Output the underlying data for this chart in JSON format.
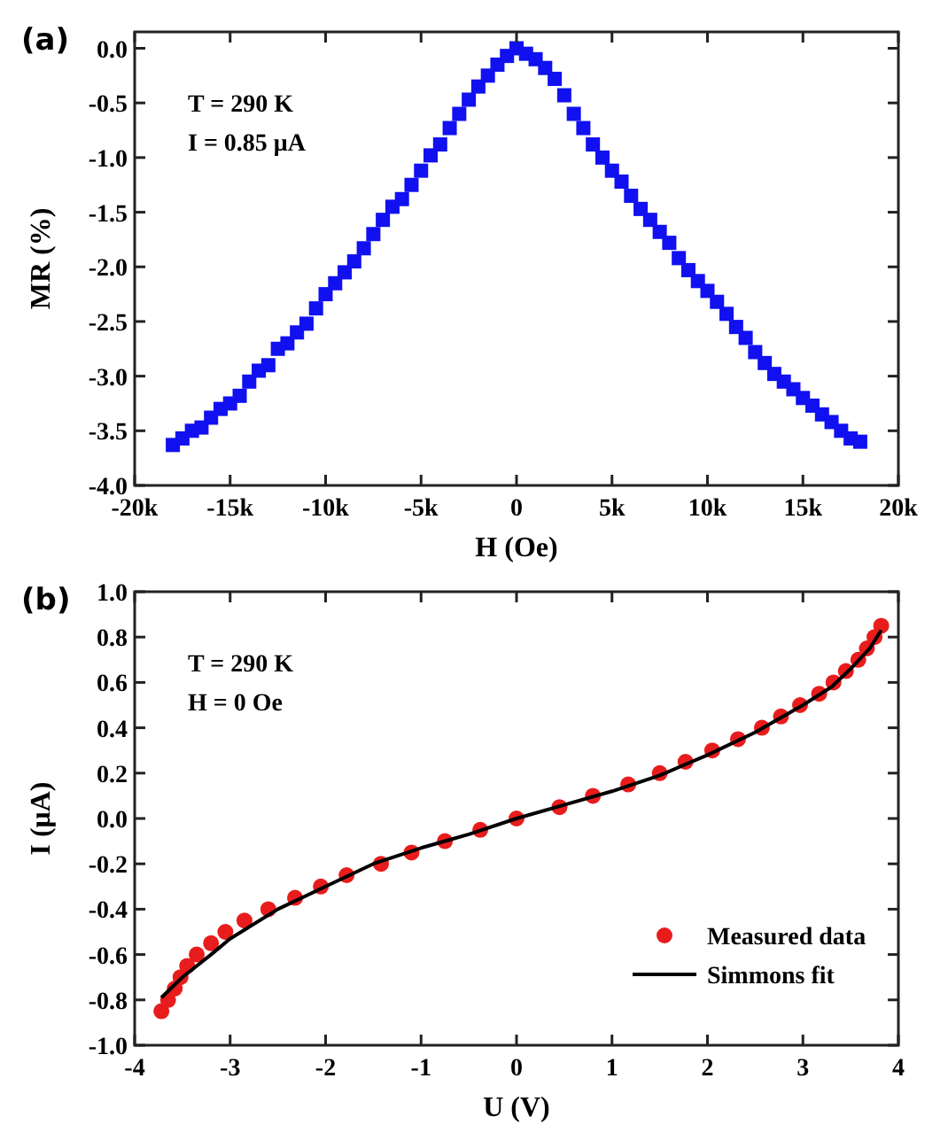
{
  "chart_data": [
    {
      "type": "scatter",
      "title": "(a)",
      "xlabel": "H (Oe)",
      "ylabel": "MR (%)",
      "annotations": [
        "T = 290 K",
        "I = 0.85 μA"
      ],
      "xlim": [
        -20000,
        20000
      ],
      "ylim": [
        -4,
        0.15
      ],
      "xticks": [
        {
          "value": -20000,
          "label": "-20k"
        },
        {
          "value": -15000,
          "label": "-15k"
        },
        {
          "value": -10000,
          "label": "-10k"
        },
        {
          "value": -5000,
          "label": "-5k"
        },
        0,
        {
          "value": 5000,
          "label": "5k"
        },
        {
          "value": 10000,
          "label": "10k"
        },
        {
          "value": 15000,
          "label": "15k"
        },
        {
          "value": 20000,
          "label": "20k"
        }
      ],
      "yticks": [
        {
          "value": -4,
          "label": "-4.0"
        },
        {
          "value": -3.5,
          "label": "-3.5"
        },
        {
          "value": -3,
          "label": "-3.0"
        },
        {
          "value": -2.5,
          "label": "-2.5"
        },
        {
          "value": -2,
          "label": "-2.0"
        },
        {
          "value": -1.5,
          "label": "-1.5"
        },
        {
          "value": -1,
          "label": "-1.0"
        },
        {
          "value": -0.5,
          "label": "-0.5"
        },
        {
          "value": 0,
          "label": "0.0"
        }
      ],
      "grid": false,
      "legend": false,
      "series": [
        {
          "marker": "square",
          "color": "#1010f0",
          "x": [
            -18000,
            -17500,
            -17000,
            -16500,
            -16000,
            -15500,
            -15000,
            -14500,
            -14000,
            -13500,
            -13000,
            -12500,
            -12000,
            -11500,
            -11000,
            -10500,
            -10000,
            -9500,
            -9000,
            -8500,
            -8000,
            -7500,
            -7000,
            -6500,
            -6000,
            -5500,
            -5000,
            -4500,
            -4000,
            -3500,
            -3000,
            -2500,
            -2000,
            -1500,
            -1000,
            -500,
            0,
            500,
            1000,
            1500,
            2000,
            2500,
            3000,
            3500,
            4000,
            4500,
            5000,
            5500,
            6000,
            6500,
            7000,
            7500,
            8000,
            8500,
            9000,
            9500,
            10000,
            10500,
            11000,
            11500,
            12000,
            12500,
            13000,
            13500,
            14000,
            14500,
            15000,
            15500,
            16000,
            16500,
            17000,
            17500,
            18000
          ],
          "values": [
            -3.63,
            -3.57,
            -3.5,
            -3.47,
            -3.38,
            -3.3,
            -3.25,
            -3.18,
            -3.05,
            -2.95,
            -2.9,
            -2.75,
            -2.7,
            -2.6,
            -2.52,
            -2.38,
            -2.25,
            -2.15,
            -2.05,
            -1.95,
            -1.83,
            -1.7,
            -1.57,
            -1.45,
            -1.38,
            -1.25,
            -1.12,
            -0.98,
            -0.88,
            -0.73,
            -0.6,
            -0.47,
            -0.35,
            -0.25,
            -0.15,
            -0.07,
            0,
            -0.05,
            -0.1,
            -0.18,
            -0.28,
            -0.43,
            -0.6,
            -0.73,
            -0.88,
            -1.0,
            -1.12,
            -1.22,
            -1.35,
            -1.47,
            -1.57,
            -1.68,
            -1.78,
            -1.92,
            -2.03,
            -2.13,
            -2.22,
            -2.32,
            -2.43,
            -2.55,
            -2.65,
            -2.78,
            -2.88,
            -2.98,
            -3.05,
            -3.12,
            -3.2,
            -3.27,
            -3.35,
            -3.42,
            -3.5,
            -3.57,
            -3.6
          ]
        }
      ]
    },
    {
      "type": "scatter",
      "title": "(b)",
      "xlabel": "U (V)",
      "ylabel": "I (μA)",
      "annotations": [
        "T = 290 K",
        "H = 0 Oe"
      ],
      "xlim": [
        -4,
        4
      ],
      "ylim": [
        -1,
        1
      ],
      "xticks": [
        -4,
        -3,
        -2,
        -1,
        0,
        1,
        2,
        3,
        4
      ],
      "yticks": [
        {
          "value": -1,
          "label": "-1.0"
        },
        {
          "value": -0.8,
          "label": "-0.8"
        },
        {
          "value": -0.6,
          "label": "-0.6"
        },
        {
          "value": -0.4,
          "label": "-0.4"
        },
        {
          "value": -0.2,
          "label": "-0.2"
        },
        {
          "value": 0,
          "label": "0.0"
        },
        {
          "value": 0.2,
          "label": "0.2"
        },
        {
          "value": 0.4,
          "label": "0.4"
        },
        {
          "value": 0.6,
          "label": "0.6"
        },
        {
          "value": 0.8,
          "label": "0.8"
        },
        {
          "value": 1,
          "label": "1.0"
        }
      ],
      "grid": false,
      "legend": "bottom right",
      "series": [
        {
          "name": "Measured data",
          "marker": "circle",
          "color": "#e81c1c",
          "x": [
            -3.72,
            -3.65,
            -3.58,
            -3.52,
            -3.45,
            -3.35,
            -3.2,
            -3.05,
            -2.85,
            -2.6,
            -2.32,
            -2.05,
            -1.78,
            -1.42,
            -1.1,
            -0.75,
            -0.38,
            0,
            0.45,
            0.8,
            1.17,
            1.5,
            1.77,
            2.05,
            2.32,
            2.57,
            2.77,
            2.97,
            3.17,
            3.32,
            3.45,
            3.58,
            3.67,
            3.75,
            3.82
          ],
          "values": [
            -0.85,
            -0.8,
            -0.75,
            -0.7,
            -0.65,
            -0.6,
            -0.55,
            -0.5,
            -0.45,
            -0.4,
            -0.35,
            -0.3,
            -0.25,
            -0.2,
            -0.15,
            -0.1,
            -0.05,
            0,
            0.05,
            0.1,
            0.15,
            0.2,
            0.25,
            0.3,
            0.35,
            0.4,
            0.45,
            0.5,
            0.55,
            0.6,
            0.65,
            0.7,
            0.75,
            0.8,
            0.85
          ]
        },
        {
          "type": "line",
          "name": "Simmons fit",
          "line_style": "solid",
          "color": "#000000",
          "x": [
            -3.72,
            -3.5,
            -3.2,
            -3,
            -2.5,
            -2,
            -1.5,
            -1,
            -0.5,
            0,
            0.5,
            1,
            1.5,
            2,
            2.5,
            3,
            3.3,
            3.5,
            3.7,
            3.82
          ],
          "values": [
            -0.79,
            -0.7,
            -0.6,
            -0.53,
            -0.4,
            -0.3,
            -0.2,
            -0.13,
            -0.07,
            0,
            0.06,
            0.12,
            0.19,
            0.28,
            0.38,
            0.5,
            0.58,
            0.66,
            0.75,
            0.83
          ]
        }
      ]
    }
  ]
}
